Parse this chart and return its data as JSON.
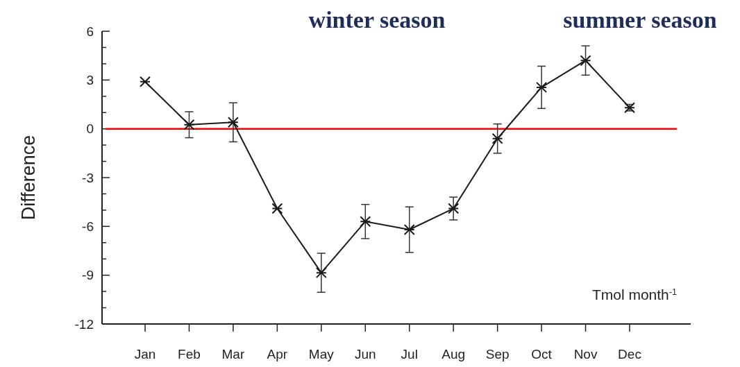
{
  "chart_data": {
    "type": "line",
    "ylabel": "Difference",
    "categories": [
      "Jan",
      "Feb",
      "Mar",
      "Apr",
      "May",
      "Jun",
      "Jul",
      "Aug",
      "Sep",
      "Oct",
      "Nov",
      "Dec"
    ],
    "values": [
      2.9,
      0.25,
      0.4,
      -4.9,
      -8.85,
      -5.7,
      -6.2,
      -4.9,
      -0.6,
      2.55,
      4.2,
      1.3
    ],
    "errors": [
      null,
      0.8,
      1.2,
      null,
      1.2,
      1.05,
      1.4,
      0.7,
      0.9,
      1.3,
      0.9,
      0.2
    ],
    "color": "#1a1a1a",
    "marker": "cross",
    "line_style": "solid",
    "ylim": [
      -12,
      6
    ],
    "yticks": [
      6,
      {
        "value": 5,
        "label": null
      },
      {
        "value": 4,
        "label": null
      },
      3,
      {
        "value": 2,
        "label": null
      },
      {
        "value": 1,
        "label": null
      },
      0,
      {
        "value": -1,
        "label": null
      },
      {
        "value": -2,
        "label": null
      },
      -3,
      {
        "value": -4,
        "label": null
      },
      {
        "value": -5,
        "label": null
      },
      -6,
      {
        "value": -7,
        "label": null
      },
      {
        "value": -8,
        "label": null
      },
      -9,
      {
        "value": -10,
        "label": null
      },
      {
        "value": -11,
        "label": null
      },
      -12
    ],
    "ref_lines": [
      {
        "axis": "y",
        "value": 0,
        "color": "#ff0000"
      }
    ],
    "annotations": [
      "winter season",
      "summer season",
      "Tmol month$^{-1}$"
    ],
    "grid": false
  }
}
